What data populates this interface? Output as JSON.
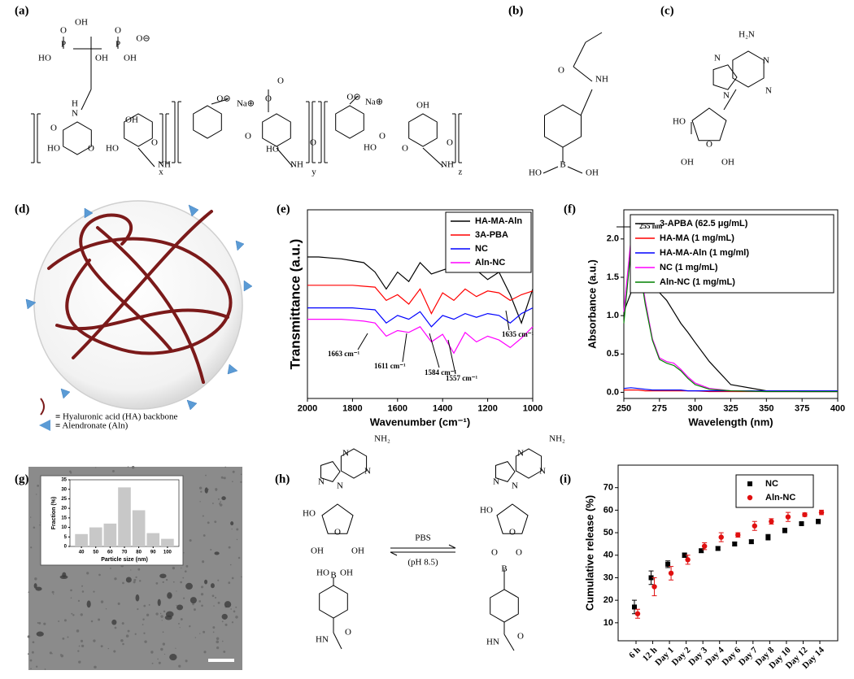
{
  "panel_labels": [
    "(a)",
    "(b)",
    "(c)",
    "(d)",
    "(e)",
    "(f)",
    "(g)",
    "(h)",
    "(i)"
  ],
  "structures": {
    "a": [
      "OH",
      "P",
      "P",
      "O",
      "O",
      "HO",
      "OH",
      "OH",
      "O⊖",
      "H",
      "N",
      "O",
      "HO",
      "O",
      "OH",
      "HO",
      "O",
      "NH",
      "x",
      "O⊖",
      "Na⊕",
      "O",
      "O",
      "O",
      "HO",
      "O",
      "NH",
      "y",
      "O⊖",
      "Na⊕",
      "O",
      "HO",
      "OH",
      "O",
      "O",
      "NH",
      "z"
    ],
    "b": [
      "O",
      "NH",
      "B",
      "HO",
      "OH"
    ],
    "c": [
      "H₂N",
      "N",
      "N",
      "N",
      "N",
      "HO",
      "O",
      "OH",
      "OH"
    ],
    "h_left": [
      "NH₂",
      "N",
      "N",
      "N",
      "N",
      "HO",
      "O",
      "OH",
      "OH",
      "HO",
      "B",
      "OH",
      "HN",
      "O"
    ],
    "h_right": [
      "NH₂",
      "N",
      "N",
      "N",
      "N",
      "HO",
      "O",
      "O",
      "O",
      "B",
      "HN",
      "O"
    ],
    "h_arrow": [
      "PBS",
      "(pH 8.5)"
    ]
  },
  "legend_d": [
    "≡ Hyaluronic acid (HA) backbone",
    "≡ Alendronate (Aln)"
  ],
  "chart_data": [
    {
      "type": "line",
      "x_label": "Wavenumber (cm⁻¹)",
      "y_label": "Transmittance (a.u.)",
      "x": [
        2000,
        1950,
        1900,
        1850,
        1800,
        1750,
        1700,
        1650,
        1600,
        1550,
        1500,
        1450,
        1400,
        1350,
        1300,
        1250,
        1200,
        1150,
        1100,
        1050,
        1000
      ],
      "xlim": [
        2000,
        1000
      ],
      "xticks": [
        2000,
        1800,
        1600,
        1400,
        1200,
        1000
      ],
      "ylim": [
        0,
        100
      ],
      "legend": "upper right",
      "annotations": [
        "1635 cm⁻¹",
        "1663 cm⁻¹",
        "1611 cm⁻¹",
        "1584 cm⁻¹",
        "1557 cm⁻¹"
      ],
      "series": [
        {
          "name": "HA-MA-Aln",
          "color": "#000000",
          "values": [
            75,
            75,
            74.5,
            74,
            73,
            72,
            67,
            58,
            67,
            62,
            72,
            66,
            68,
            70,
            67,
            68,
            63,
            67,
            55,
            40,
            58
          ]
        },
        {
          "name": "3A-PBA",
          "color": "#ff0000",
          "values": [
            60,
            60,
            60,
            60,
            60,
            59.5,
            59,
            52,
            55,
            50,
            58,
            45,
            56,
            52,
            58,
            54,
            57,
            56,
            52,
            55,
            57
          ]
        },
        {
          "name": "NC",
          "color": "#0000ff",
          "values": [
            48,
            48,
            48,
            48,
            48,
            47.5,
            47,
            40,
            44,
            42,
            46,
            38,
            44,
            42,
            45,
            43,
            45,
            44,
            40,
            45,
            48
          ]
        },
        {
          "name": "Aln-NC",
          "color": "#ff00ff",
          "values": [
            42,
            42,
            42,
            42,
            41.5,
            41,
            40,
            33,
            36,
            35,
            38,
            30,
            34,
            24,
            35,
            30,
            33,
            31,
            27,
            32,
            38
          ]
        }
      ]
    },
    {
      "type": "line",
      "x_label": "Wavelength (nm)",
      "y_label": "Absorbance (a.u.)",
      "x": [
        250,
        255,
        260,
        265,
        270,
        275,
        280,
        285,
        290,
        295,
        300,
        310,
        325,
        350,
        375,
        400
      ],
      "xlim": [
        250,
        400
      ],
      "xticks": [
        250,
        275,
        300,
        325,
        350,
        375,
        400
      ],
      "ylim": [
        -0.08,
        2.38
      ],
      "yticks": [
        {
          "value": 0,
          "label": "0.0"
        },
        0.5,
        {
          "value": 1,
          "label": "1.0"
        },
        1.5,
        {
          "value": 2,
          "label": "2.0"
        }
      ],
      "legend": "upper right",
      "annotations": [
        "255 nm"
      ],
      "series": [
        {
          "name": "3-APBA (62.5 μg/mL)",
          "color": "#000000",
          "values": [
            1.05,
            1.3,
            1.38,
            1.4,
            1.37,
            1.3,
            1.2,
            1.05,
            0.9,
            0.78,
            0.65,
            0.4,
            0.1,
            0.02,
            0.01,
            0.01
          ]
        },
        {
          "name": "HA-MA (1 mg/mL)",
          "color": "#ff0000",
          "values": [
            0.03,
            0.03,
            0.03,
            0.02,
            0.02,
            0.02,
            0.02,
            0.02,
            0.02,
            0.02,
            0.02,
            0.01,
            0.01,
            0.01,
            0.01,
            0.01
          ]
        },
        {
          "name": "HA-MA-Aln (1 mg/ml)",
          "color": "#0000ff",
          "values": [
            0.05,
            0.06,
            0.05,
            0.04,
            0.03,
            0.03,
            0.03,
            0.03,
            0.03,
            0.02,
            0.02,
            0.02,
            0.02,
            0.02,
            0.02,
            0.02
          ]
        },
        {
          "name": "NC (1 mg/mL)",
          "color": "#ff00ff",
          "values": [
            1.05,
            2.0,
            1.8,
            1.2,
            0.7,
            0.45,
            0.4,
            0.38,
            0.3,
            0.2,
            0.12,
            0.05,
            0.02,
            0.01,
            0.01,
            0.01
          ]
        },
        {
          "name": "Aln-NC (1 mg/mL)",
          "color": "#008000",
          "values": [
            0.9,
            1.88,
            1.75,
            1.15,
            0.68,
            0.43,
            0.38,
            0.35,
            0.28,
            0.18,
            0.1,
            0.04,
            0.02,
            0.01,
            0.01,
            0.01
          ]
        }
      ]
    },
    {
      "type": "histogram",
      "x_label": "Particle size (nm)",
      "y_label": "Fraction (%)",
      "bins": [
        35,
        45,
        55,
        65,
        75,
        85,
        95,
        105
      ],
      "values": [
        6.5,
        10,
        12,
        31,
        19,
        7,
        4
      ],
      "color": "#c8c8c8",
      "xlim": [
        32,
        108
      ],
      "xticks": [
        40,
        50,
        60,
        70,
        80,
        90,
        100
      ],
      "ylim": [
        0,
        35
      ],
      "yticks": [
        0,
        5,
        10,
        15,
        20,
        25,
        30,
        35
      ]
    },
    {
      "type": "scatter",
      "y_label": "Cumulative release (%)",
      "categories": [
        "6 h",
        "12 h",
        "Day 1",
        "Day 2",
        "Day 3",
        "Day 4",
        "Day 6",
        "Day 7",
        "Day 8",
        "Day 10",
        "Day 12",
        "Day 14"
      ],
      "ylim": [
        2,
        80
      ],
      "yticks": [
        10,
        20,
        30,
        40,
        50,
        60,
        70
      ],
      "legend": "upper right",
      "series": [
        {
          "name": "NC",
          "color": "#000000",
          "marker": "square",
          "values": [
            17,
            30,
            36,
            40,
            42,
            43,
            45,
            46,
            48,
            51,
            54,
            55
          ],
          "errors": [
            3,
            3,
            1.5,
            1,
            0.8,
            0.8,
            0.8,
            0.8,
            1.2,
            1,
            0.5,
            1
          ]
        },
        {
          "name": "Aln-NC",
          "color": "#e01010",
          "marker": "circle",
          "values": [
            14,
            26,
            32,
            38,
            44,
            48,
            49,
            53,
            55,
            57,
            58,
            59
          ],
          "errors": [
            2,
            4,
            3,
            2,
            1.5,
            2,
            1,
            2,
            1.2,
            2,
            0.8,
            1
          ]
        }
      ]
    }
  ]
}
